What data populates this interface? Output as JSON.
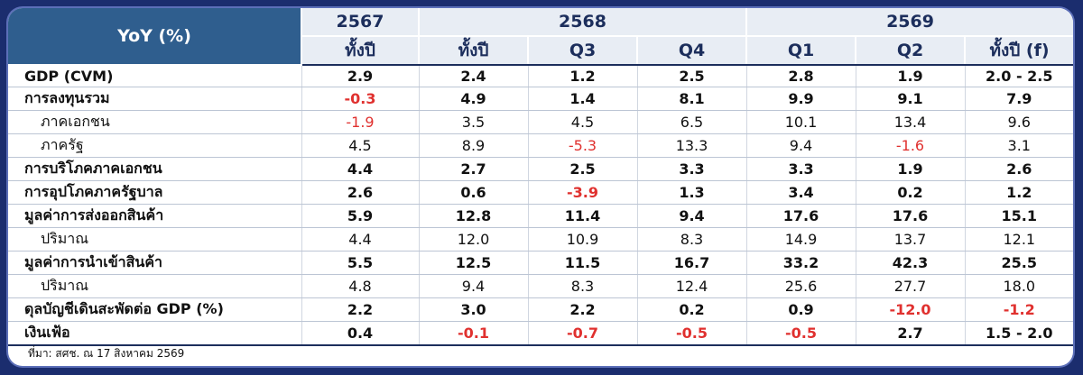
{
  "header": {
    "corner": "YoY (%)",
    "years": [
      {
        "label": "2567"
      },
      {
        "label": "2568"
      },
      {
        "label": "2569"
      }
    ],
    "subheaders": [
      "ทั้งปี",
      "ทั้งปี",
      "Q3",
      "Q4",
      "Q1",
      "Q2",
      "ทั้งปี (f)"
    ]
  },
  "rows": [
    {
      "label": "GDP (CVM)",
      "type": "main",
      "values": [
        "2.9",
        "2.4",
        "1.2",
        "2.5",
        "2.8",
        "1.9",
        "2.0 - 2.5"
      ]
    },
    {
      "label": "การลงทุนรวม",
      "type": "main",
      "values": [
        "-0.3",
        "4.9",
        "1.4",
        "8.1",
        "9.9",
        "9.1",
        "7.9"
      ]
    },
    {
      "label": "ภาคเอกชน",
      "type": "sub",
      "values": [
        "-1.9",
        "3.5",
        "4.5",
        "6.5",
        "10.1",
        "13.4",
        "9.6"
      ]
    },
    {
      "label": "ภาครัฐ",
      "type": "sub",
      "values": [
        "4.5",
        "8.9",
        "-5.3",
        "13.3",
        "9.4",
        "-1.6",
        "3.1"
      ]
    },
    {
      "label": "การบริโภคภาคเอกชน",
      "type": "main",
      "values": [
        "4.4",
        "2.7",
        "2.5",
        "3.3",
        "3.3",
        "1.9",
        "2.6"
      ]
    },
    {
      "label": "การอุปโภคภาครัฐบาล",
      "type": "main",
      "values": [
        "2.6",
        "0.6",
        "-3.9",
        "1.3",
        "3.4",
        "0.2",
        "1.2"
      ]
    },
    {
      "label": "มูลค่าการส่งออกสินค้า",
      "type": "main",
      "values": [
        "5.9",
        "12.8",
        "11.4",
        "9.4",
        "17.6",
        "17.6",
        "15.1"
      ]
    },
    {
      "label": "ปริมาณ",
      "type": "sub",
      "values": [
        "4.4",
        "12.0",
        "10.9",
        "8.3",
        "14.9",
        "13.7",
        "12.1"
      ]
    },
    {
      "label": "มูลค่าการนำเข้าสินค้า",
      "type": "main",
      "values": [
        "5.5",
        "12.5",
        "11.5",
        "16.7",
        "33.2",
        "42.3",
        "25.5"
      ]
    },
    {
      "label": "ปริมาณ",
      "type": "sub",
      "values": [
        "4.8",
        "9.4",
        "8.3",
        "12.4",
        "25.6",
        "27.7",
        "18.0"
      ]
    },
    {
      "label": "ดุลบัญชีเดินสะพัดต่อ GDP (%)",
      "type": "main",
      "values": [
        "2.2",
        "3.0",
        "2.2",
        "0.2",
        "0.9",
        "-12.0",
        "-1.2"
      ]
    },
    {
      "label": "เงินเฟ้อ",
      "type": "main",
      "values": [
        "0.4",
        "-0.1",
        "-0.7",
        "-0.5",
        "-0.5",
        "2.7",
        "1.5 - 2.0"
      ]
    }
  ],
  "source": "ที่มา: สศช. ณ 17 สิงหาคม 2569",
  "colors": {
    "negative": "#e0312f",
    "header_dark": "#2f5e8e",
    "header_light": "#e8edf4",
    "background": "#1b2d6e"
  }
}
